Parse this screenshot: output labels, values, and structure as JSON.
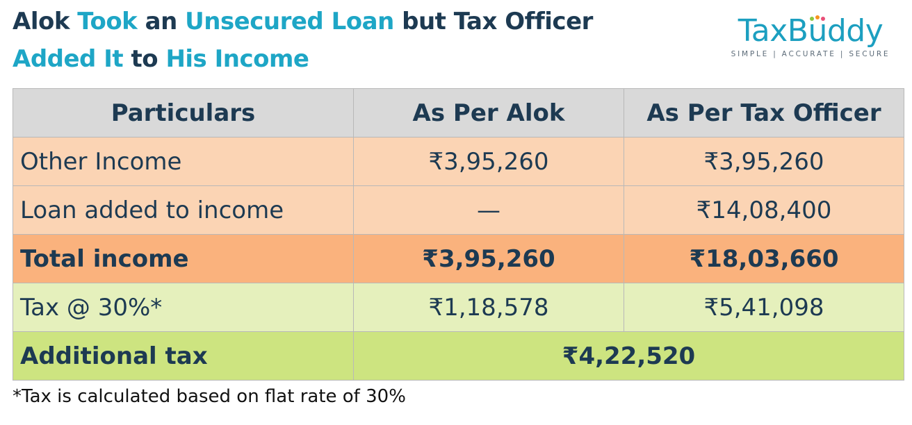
{
  "title": {
    "line1": [
      {
        "text": "Alok ",
        "highlight": false
      },
      {
        "text": "Took",
        "highlight": true
      },
      {
        "text": " an ",
        "highlight": false
      },
      {
        "text": "Unsecured Loan",
        "highlight": true
      },
      {
        "text": " but Tax Officer",
        "highlight": false
      }
    ],
    "line2": [
      {
        "text": "Added It",
        "highlight": true
      },
      {
        "text": " to ",
        "highlight": false
      },
      {
        "text": "His Income",
        "highlight": true
      }
    ]
  },
  "logo": {
    "part1": "TaxB",
    "u": "u",
    "part2": "ddy",
    "tagline": "SIMPLE | ACCURATE | SECURE",
    "dot_colors": [
      "#8cc63f",
      "#f7941d",
      "#e94e77"
    ]
  },
  "table": {
    "headers": [
      "Particulars",
      "As Per Alok",
      "As Per Tax Officer"
    ],
    "rows": {
      "other_income": {
        "label": "Other Income",
        "alok": "₹3,95,260",
        "officer": "₹3,95,260"
      },
      "loan_added": {
        "label": "Loan added to income",
        "alok": "—",
        "officer": "₹14,08,400"
      },
      "total_income": {
        "label": "Total income",
        "alok": "₹3,95,260",
        "officer": "₹18,03,660"
      },
      "tax": {
        "label": "Tax @ 30%*",
        "alok": "₹1,18,578",
        "officer": "₹5,41,098"
      },
      "additional_tax": {
        "label": "Additional tax",
        "value": "₹4,22,520"
      }
    }
  },
  "footnote": "*Tax is calculated based on flat rate of 30%",
  "colors": {
    "navy": "#1d3a52",
    "accent": "#1ea6c6",
    "header_bg": "#d9d9d9",
    "income_bg": "#fbd4b4",
    "total_bg": "#fab27d",
    "tax_bg": "#e5f0bc",
    "additional_bg": "#cde480"
  }
}
